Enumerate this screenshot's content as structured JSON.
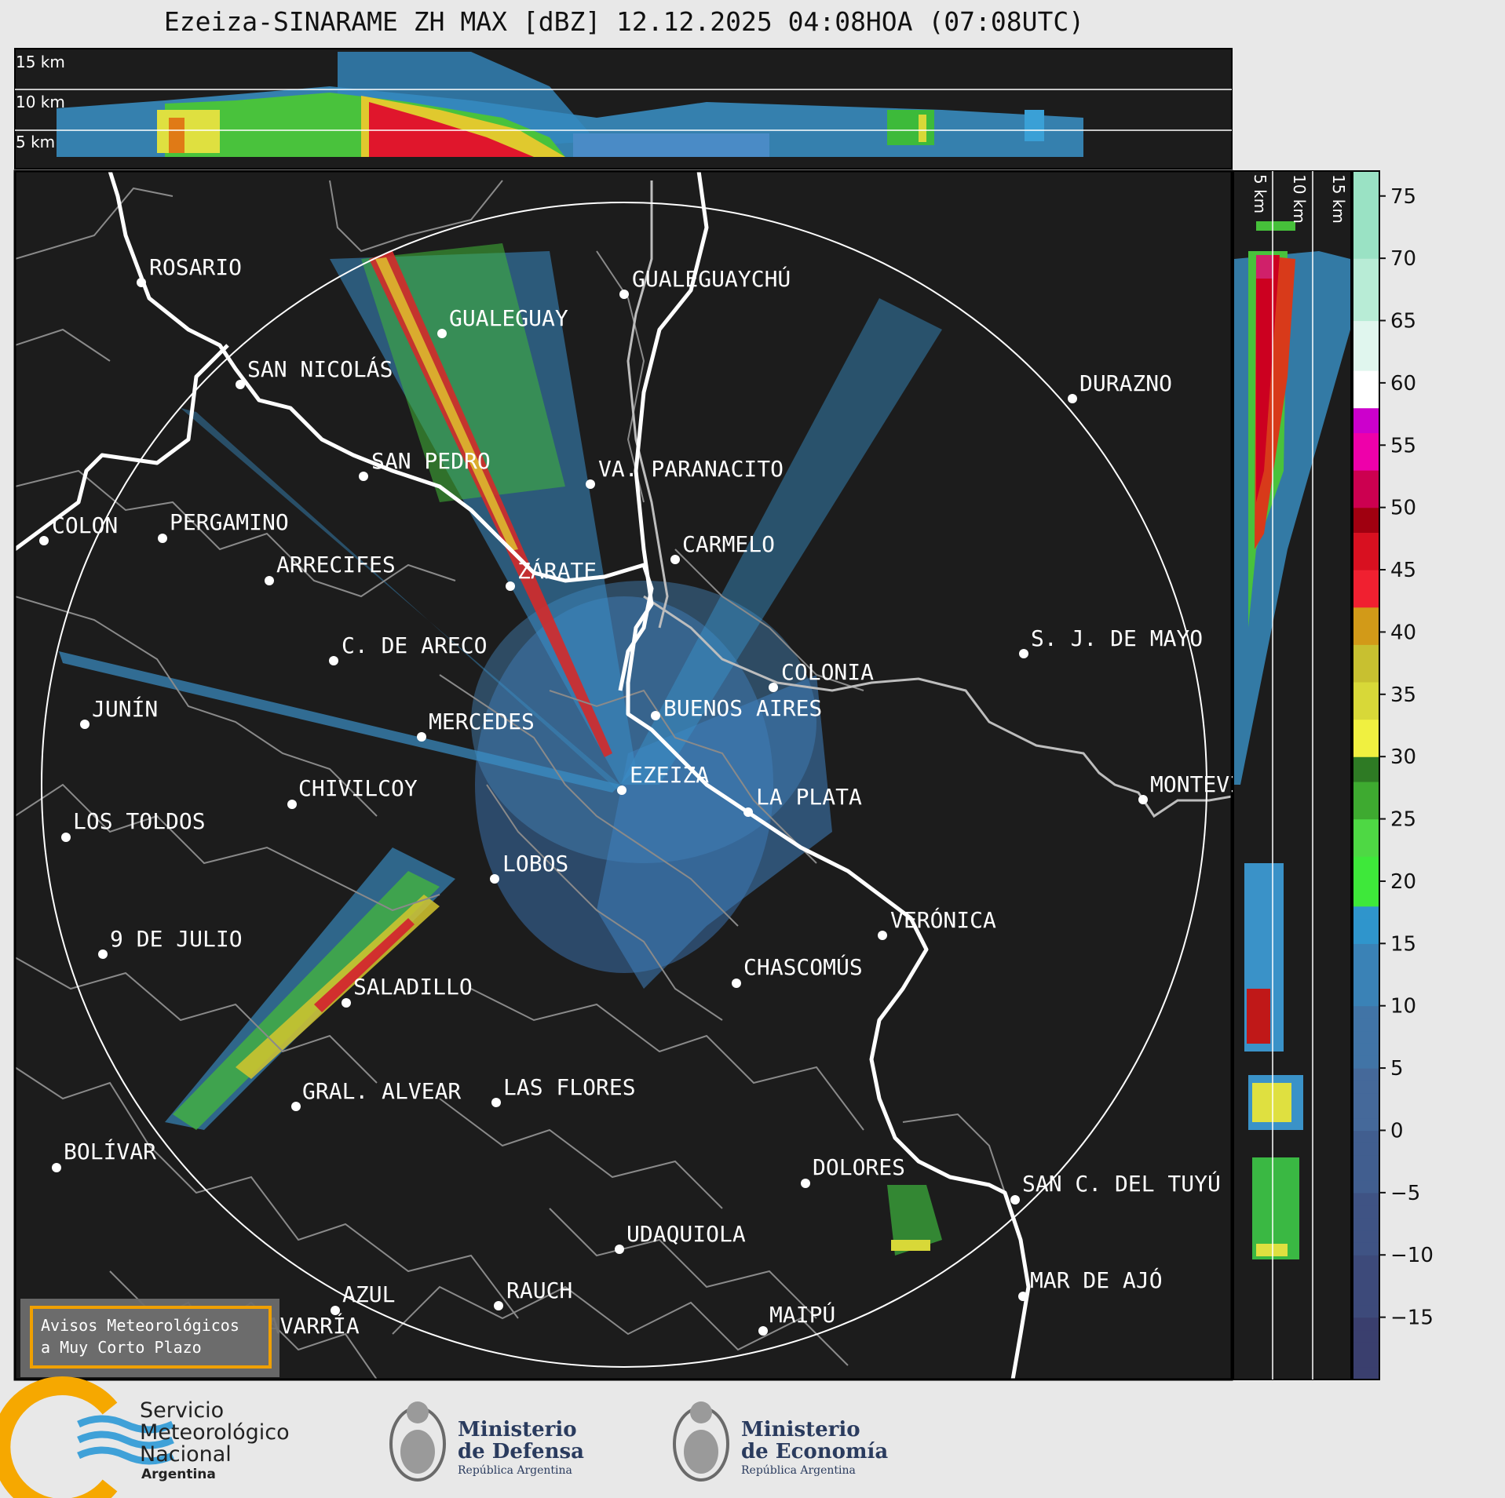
{
  "title": "Ezeiza-SINARAME ZH MAX [dBZ] 12.12.2025 04:08HOA (07:08UTC)",
  "colors": {
    "background": "#1c1c1c",
    "coast": "#ffffff",
    "borders": "#8a8a8a",
    "range_ring": "#ffffff",
    "warning_box_border": "#f0a000"
  },
  "top_panel": {
    "height_labels": [
      "15 km",
      "10 km",
      "5 km"
    ]
  },
  "side_panel": {
    "height_labels": [
      "5 km",
      "10 km",
      "15 km"
    ]
  },
  "colorbar": {
    "unit": "dBZ",
    "min": -20,
    "max": 77,
    "tick_labels": [
      "75",
      "70",
      "65",
      "60",
      "55",
      "50",
      "45",
      "40",
      "35",
      "30",
      "25",
      "20",
      "15",
      "10",
      "5",
      "0",
      "−5",
      "−10",
      "−15"
    ],
    "tick_values": [
      75,
      70,
      65,
      60,
      55,
      50,
      45,
      40,
      35,
      30,
      25,
      20,
      15,
      10,
      5,
      0,
      -5,
      -10,
      -15
    ]
  },
  "radar": {
    "name": "EZEIZA",
    "range_ring_km": 240
  },
  "cities": [
    {
      "name": "ROSARIO"
    },
    {
      "name": "GUALEGUAYCHÚ"
    },
    {
      "name": "GUALEGUAY"
    },
    {
      "name": "SAN NICOLÁS"
    },
    {
      "name": "DURAZNO"
    },
    {
      "name": "SAN PEDRO"
    },
    {
      "name": "VA. PARANACITO"
    },
    {
      "name": "COLON"
    },
    {
      "name": "PERGAMINO"
    },
    {
      "name": "CARMELO"
    },
    {
      "name": "ARRECIFES"
    },
    {
      "name": "ZÁRATE"
    },
    {
      "name": "S. J. DE MAYO"
    },
    {
      "name": "C. DE ARECO"
    },
    {
      "name": "COLONIA"
    },
    {
      "name": "JUNÍN"
    },
    {
      "name": "BUENOS AIRES"
    },
    {
      "name": "MERCEDES"
    },
    {
      "name": "EZEIZA"
    },
    {
      "name": "MONTEVIDEO"
    },
    {
      "name": "CHIVILCOY"
    },
    {
      "name": "LA PLATA"
    },
    {
      "name": "LOS TOLDOS"
    },
    {
      "name": "LOBOS"
    },
    {
      "name": "VERÓNICA"
    },
    {
      "name": "9 DE JULIO"
    },
    {
      "name": "CHASCOMÚS"
    },
    {
      "name": "SALADILLO"
    },
    {
      "name": "GRAL. ALVEAR"
    },
    {
      "name": "LAS FLORES"
    },
    {
      "name": "BOLÍVAR"
    },
    {
      "name": "DOLORES"
    },
    {
      "name": "SAN C. DEL TUYÚ"
    },
    {
      "name": "UDAQUIOLA"
    },
    {
      "name": "MAR DE AJÓ"
    },
    {
      "name": "AZUL"
    },
    {
      "name": "RAUCH"
    },
    {
      "name": "OLAVARRÍA"
    },
    {
      "name": "MAIPÚ"
    }
  ],
  "warning_box": {
    "line1": "Avisos Meteorológicos",
    "line2": "a Muy Corto Plazo"
  },
  "footer": {
    "smn": {
      "line1": "Servicio",
      "line2": "Meteorológico",
      "line3": "Nacional",
      "line4": "Argentina"
    },
    "defensa": {
      "line1": "Ministerio",
      "line2": "de Defensa",
      "line3": "República Argentina"
    },
    "economia": {
      "line1": "Ministerio",
      "line2": "de Economía",
      "line3": "República Argentina"
    }
  }
}
